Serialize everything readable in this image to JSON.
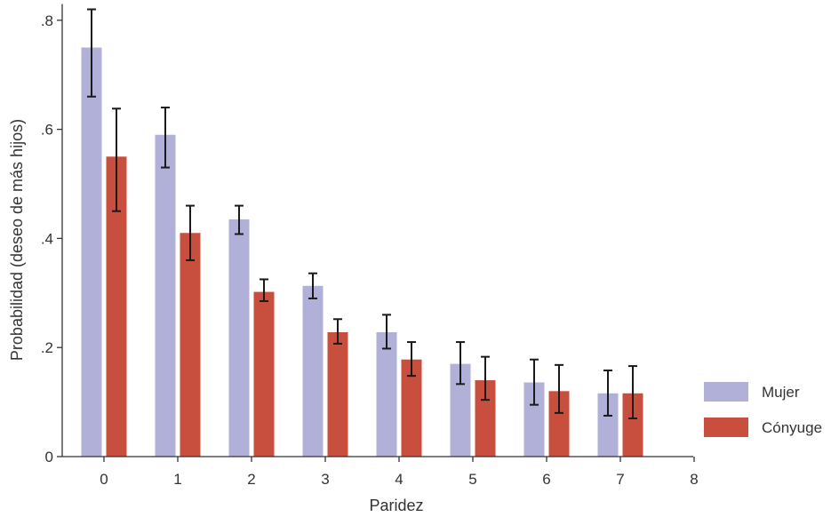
{
  "colors": {
    "mujer": "#b0b0d8",
    "conyuge": "#c84f3d"
  },
  "chart_data": {
    "type": "bar",
    "x": [
      0,
      1,
      2,
      3,
      4,
      5,
      6,
      7
    ],
    "xticks": [
      "0",
      "1",
      "2",
      "3",
      "4",
      "5",
      "6",
      "7",
      "8"
    ],
    "yticks": [
      "0",
      ".2",
      ".4",
      ".6",
      ".8"
    ],
    "xlabel": "Paridez",
    "ylabel": "Probabilidad (deseo de más hijos)",
    "xlim": [
      -0.5,
      8
    ],
    "ylim": [
      0,
      0.82
    ],
    "grid": false,
    "legend_position": "right",
    "series": [
      {
        "name": "Mujer",
        "values": [
          0.75,
          0.59,
          0.435,
          0.313,
          0.228,
          0.17,
          0.136,
          0.116
        ],
        "ci_low": [
          0.66,
          0.53,
          0.408,
          0.29,
          0.198,
          0.133,
          0.095,
          0.075
        ],
        "ci_high": [
          0.82,
          0.64,
          0.46,
          0.336,
          0.26,
          0.21,
          0.178,
          0.158
        ]
      },
      {
        "name": "Cónyuge",
        "values": [
          0.55,
          0.41,
          0.302,
          0.228,
          0.178,
          0.14,
          0.12,
          0.116
        ],
        "ci_low": [
          0.45,
          0.36,
          0.285,
          0.207,
          0.148,
          0.104,
          0.08,
          0.07
        ],
        "ci_high": [
          0.638,
          0.46,
          0.325,
          0.252,
          0.21,
          0.183,
          0.168,
          0.166
        ]
      }
    ]
  }
}
